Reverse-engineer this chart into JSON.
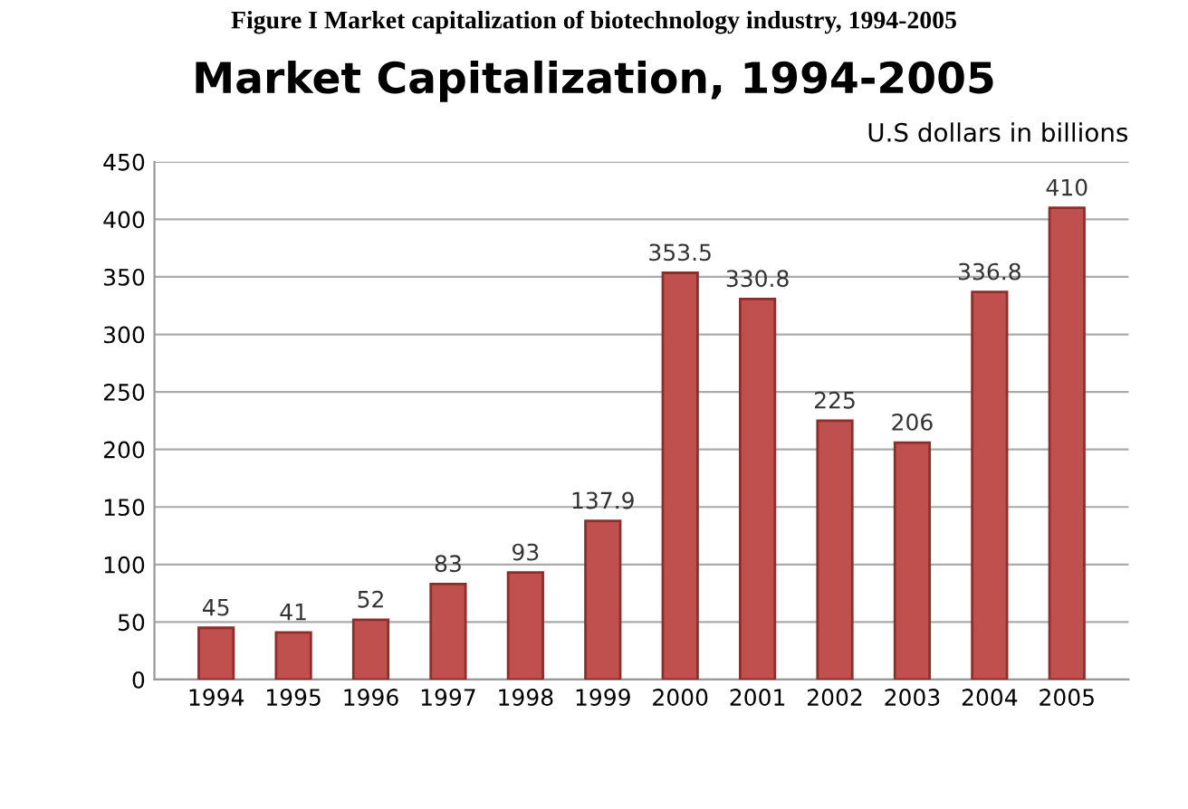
{
  "chart_data": {
    "type": "bar",
    "title": "Market Capitalization, 1994-2005",
    "subtitle": "U.S dollars in billions",
    "annotations": [
      "Figure I Market capitalization of biotechnology industry, 1994-2005"
    ],
    "categories": [
      "1994",
      "1995",
      "1996",
      "1997",
      "1998",
      "1999",
      "2000",
      "2001",
      "2002",
      "2003",
      "2004",
      "2005"
    ],
    "values": [
      45,
      41,
      52,
      83,
      93,
      137.9,
      353.5,
      330.8,
      225,
      206,
      336.8,
      410
    ],
    "color": "#c0504d",
    "ylim": [
      0,
      450
    ],
    "yticks": [
      0,
      50,
      100,
      150,
      200,
      250,
      300,
      350,
      400,
      450
    ],
    "grid": "y",
    "data_labels": true
  }
}
